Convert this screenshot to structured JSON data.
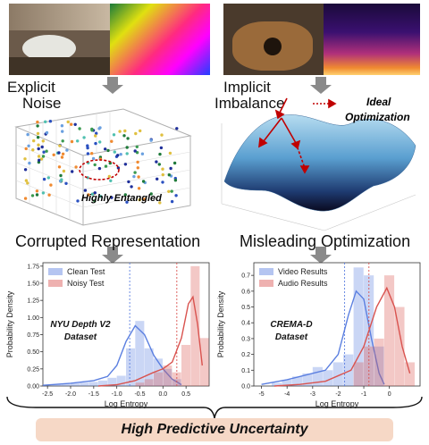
{
  "left": {
    "label_top": "Explicit",
    "label_bottom": "Noise",
    "annotation": "Highly Entangled",
    "heading": "Corrupted Representation",
    "chart": {
      "legend": [
        "Clean Test",
        "Noisy Test"
      ],
      "dataset_line1": "NYU Depth V2",
      "dataset_line2": "Dataset",
      "xlabel": "Log Entropy",
      "ylabel": "Probability Density"
    }
  },
  "right": {
    "label_top": "Implicit",
    "label_bottom": "Imbalance",
    "annotation_line1": "Ideal",
    "annotation_line2": "Optimization",
    "heading": "Misleading Optimization",
    "chart": {
      "legend": [
        "Video Results",
        "Audio Results"
      ],
      "dataset_line1": "CREMA-D",
      "dataset_line2": "Dataset",
      "xlabel": "Log Entropy",
      "ylabel": "Probability Density"
    }
  },
  "footer": "High Predictive Uncertainty",
  "colors": {
    "blue": "#5b7fe0",
    "red": "#d9534f",
    "gray_arrow": "#808080",
    "banner": "#f6d8c6"
  },
  "chart_data": [
    {
      "type": "histogram+kde",
      "xlabel": "Log Entropy",
      "ylabel": "Probability Density",
      "xlim": [
        -2.6,
        1.0
      ],
      "ylim": [
        0,
        1.8
      ],
      "x_ticks": [
        "-2.5",
        "-2.0",
        "-1.5",
        "-1.0",
        "-0.5",
        "0.0",
        "0.5"
      ],
      "y_ticks": [
        "0.00",
        "0.25",
        "0.50",
        "0.75",
        "1.00",
        "1.25",
        "1.50",
        "1.75"
      ],
      "series": [
        {
          "name": "Clean Test",
          "color": "blue",
          "bins": [
            -2.4,
            -2.2,
            -2.0,
            -1.8,
            -1.6,
            -1.4,
            -1.2,
            -1.0,
            -0.8,
            -0.6,
            -0.4,
            -0.2,
            0.0,
            0.2
          ],
          "heights": [
            0.02,
            0.03,
            0.04,
            0.05,
            0.06,
            0.08,
            0.12,
            0.15,
            0.55,
            0.95,
            0.55,
            0.4,
            0.25,
            0.1
          ],
          "kde_x": [
            -2.6,
            -2.0,
            -1.5,
            -1.2,
            -1.0,
            -0.8,
            -0.6,
            -0.4,
            -0.2,
            0.0,
            0.2,
            0.4
          ],
          "kde_y": [
            0.01,
            0.04,
            0.08,
            0.14,
            0.3,
            0.65,
            0.88,
            0.75,
            0.45,
            0.25,
            0.1,
            0.02
          ],
          "mean": -0.72
        },
        {
          "name": "Noisy Test",
          "color": "red",
          "bins": [
            -0.6,
            -0.4,
            -0.2,
            0.0,
            0.2,
            0.4,
            0.6,
            0.8
          ],
          "heights": [
            0.05,
            0.1,
            0.2,
            0.3,
            0.2,
            0.6,
            1.75,
            0.7
          ],
          "kde_x": [
            -1.4,
            -1.0,
            -0.6,
            -0.2,
            0.0,
            0.2,
            0.4,
            0.55,
            0.65,
            0.75,
            0.85
          ],
          "kde_y": [
            0.0,
            0.02,
            0.08,
            0.2,
            0.25,
            0.35,
            0.7,
            1.2,
            1.3,
            0.9,
            0.3
          ],
          "mean": 0.3
        }
      ]
    },
    {
      "type": "histogram+kde",
      "xlabel": "Log Entropy",
      "ylabel": "Probability Density",
      "xlim": [
        -5.3,
        1.2
      ],
      "ylim": [
        0,
        0.78
      ],
      "x_ticks": [
        "-5",
        "-4",
        "-3",
        "-2",
        "-1",
        "0"
      ],
      "y_ticks": [
        "0.0",
        "0.1",
        "0.2",
        "0.3",
        "0.4",
        "0.5",
        "0.6",
        "0.7"
      ],
      "series": [
        {
          "name": "Video Results",
          "color": "blue",
          "bins": [
            -4.6,
            -4.2,
            -3.8,
            -3.4,
            -3.0,
            -2.6,
            -2.2,
            -1.8,
            -1.4,
            -1.0,
            -0.6
          ],
          "heights": [
            0.02,
            0.04,
            0.06,
            0.08,
            0.12,
            0.1,
            0.15,
            0.2,
            0.75,
            0.7,
            0.25
          ],
          "kde_x": [
            -5.0,
            -4.0,
            -3.0,
            -2.5,
            -2.0,
            -1.6,
            -1.3,
            -1.0,
            -0.7,
            -0.4,
            -0.2
          ],
          "kde_y": [
            0.01,
            0.04,
            0.08,
            0.1,
            0.2,
            0.45,
            0.6,
            0.55,
            0.3,
            0.08,
            0.01
          ],
          "mean": -1.75
        },
        {
          "name": "Audio Results",
          "color": "red",
          "bins": [
            -1.4,
            -1.0,
            -0.6,
            -0.2,
            0.2,
            0.6
          ],
          "heights": [
            0.15,
            0.25,
            0.3,
            0.7,
            0.5,
            0.15
          ],
          "kde_x": [
            -4.5,
            -3.5,
            -2.5,
            -1.5,
            -1.0,
            -0.5,
            -0.1,
            0.2,
            0.5,
            0.8
          ],
          "kde_y": [
            0.0,
            0.01,
            0.03,
            0.1,
            0.25,
            0.5,
            0.62,
            0.5,
            0.25,
            0.08
          ],
          "mean": -0.8
        }
      ]
    }
  ]
}
